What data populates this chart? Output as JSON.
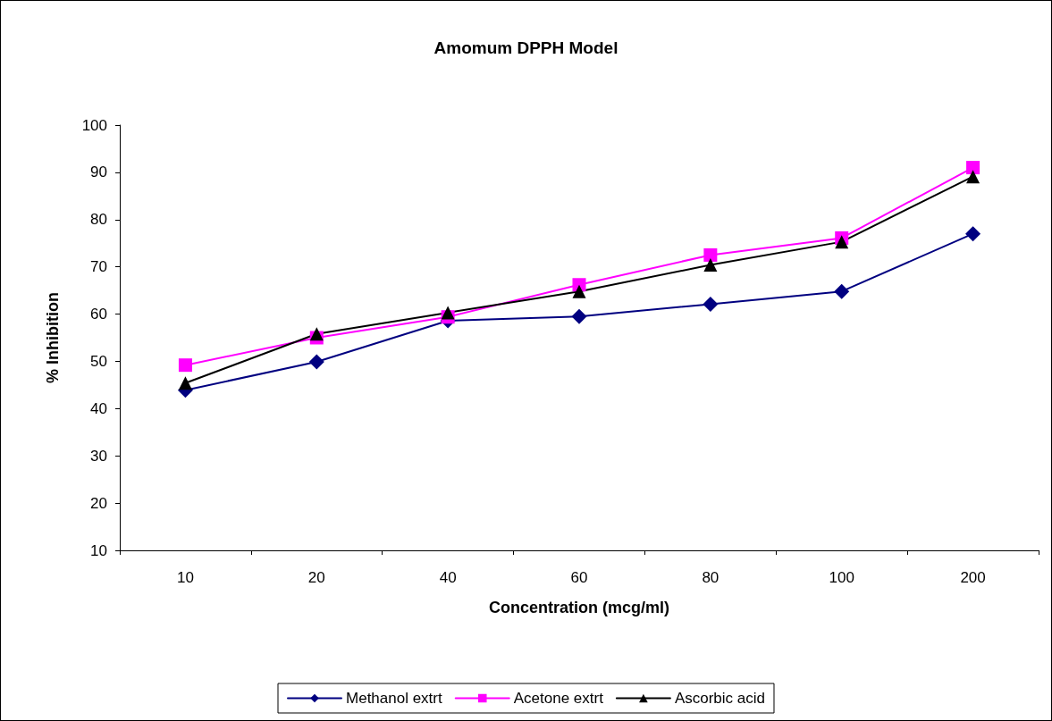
{
  "chart_data": {
    "type": "line",
    "title": "Amomum DPPH Model",
    "xlabel": "Concentration (mcg/ml)",
    "ylabel": "% Inhibition",
    "categories": [
      "10",
      "20",
      "40",
      "60",
      "80",
      "100",
      "200"
    ],
    "series": [
      {
        "name": "Methanol extrt",
        "color": "#000080",
        "marker": "diamond",
        "values": [
          43.9,
          49.9,
          58.6,
          59.5,
          62.1,
          64.8,
          77.0
        ]
      },
      {
        "name": "Acetone extrt",
        "color": "#ff00ff",
        "marker": "square",
        "values": [
          49.2,
          55.0,
          59.4,
          66.2,
          72.5,
          76.1,
          91.0
        ]
      },
      {
        "name": "Ascorbic acid",
        "color": "#000000",
        "marker": "triangle",
        "values": [
          45.4,
          55.8,
          60.3,
          64.8,
          70.4,
          75.3,
          89.1
        ]
      }
    ],
    "ylim": [
      10,
      100
    ],
    "yticks": [
      10,
      20,
      30,
      40,
      50,
      60,
      70,
      80,
      90,
      100
    ],
    "grid": false,
    "legend": "bottom"
  }
}
